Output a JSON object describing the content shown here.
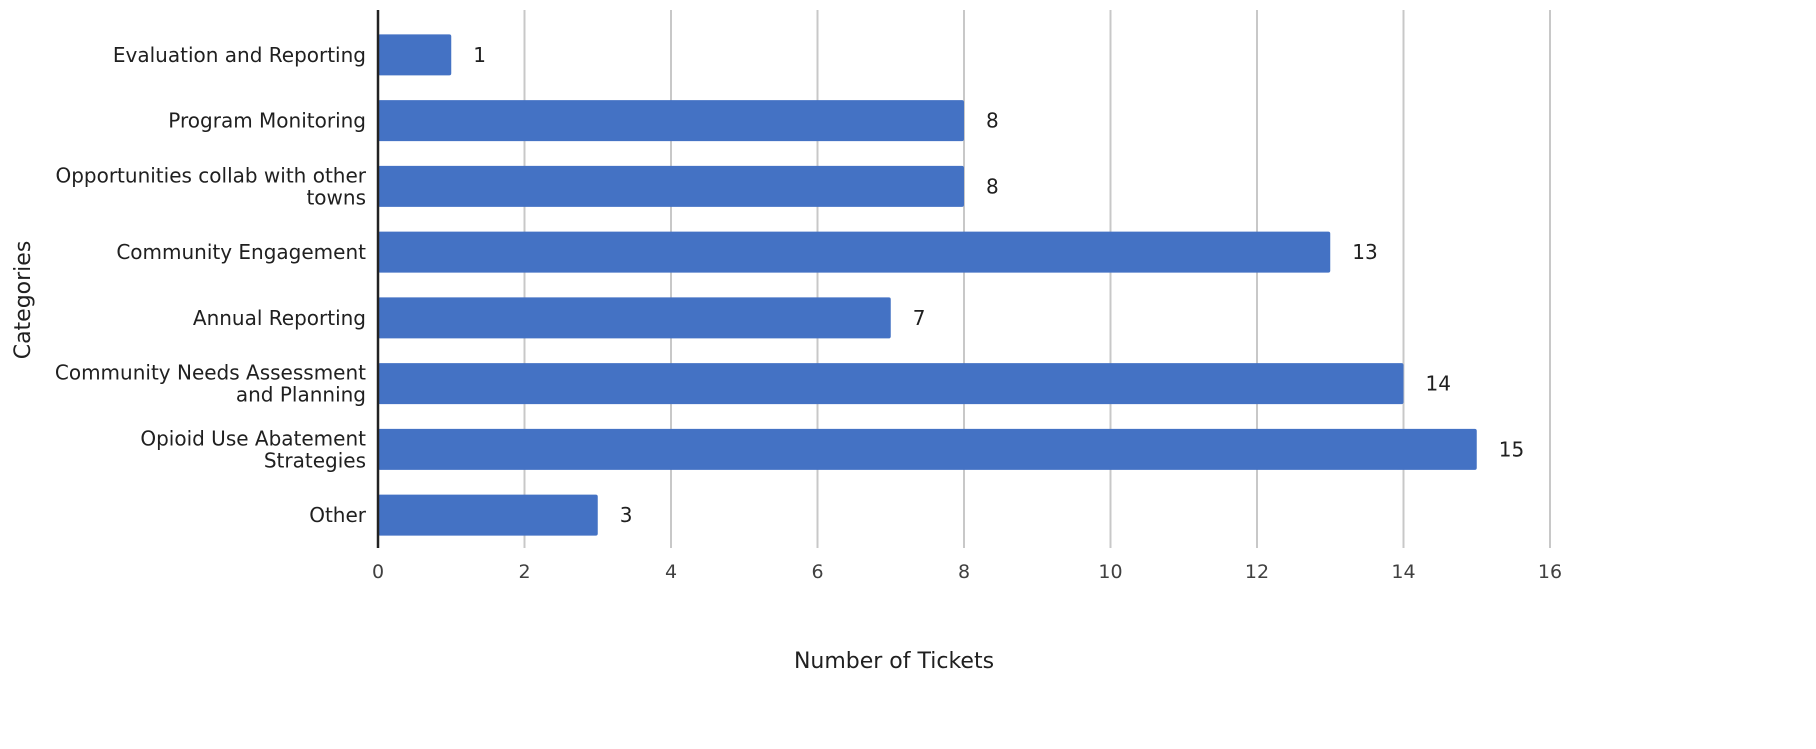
{
  "chart_data": {
    "type": "bar",
    "orientation": "horizontal",
    "categories": [
      [
        "Evaluation and Reporting"
      ],
      [
        "Program Monitoring"
      ],
      [
        "Opportunities collab with other",
        "towns"
      ],
      [
        "Community Engagement"
      ],
      [
        "Annual Reporting"
      ],
      [
        "Community Needs Assessment",
        "and Planning"
      ],
      [
        "Opioid Use Abatement",
        "Strategies"
      ],
      [
        "Other"
      ]
    ],
    "values": [
      1,
      8,
      8,
      13,
      7,
      14,
      15,
      3
    ],
    "xlabel": "Number of Tickets",
    "ylabel": "Categories",
    "xlim": [
      0,
      16
    ],
    "xticks": [
      0,
      2,
      4,
      6,
      8,
      10,
      12,
      14,
      16
    ],
    "grid": "vertical",
    "legend": "none",
    "bar_color": "#4472C4"
  }
}
